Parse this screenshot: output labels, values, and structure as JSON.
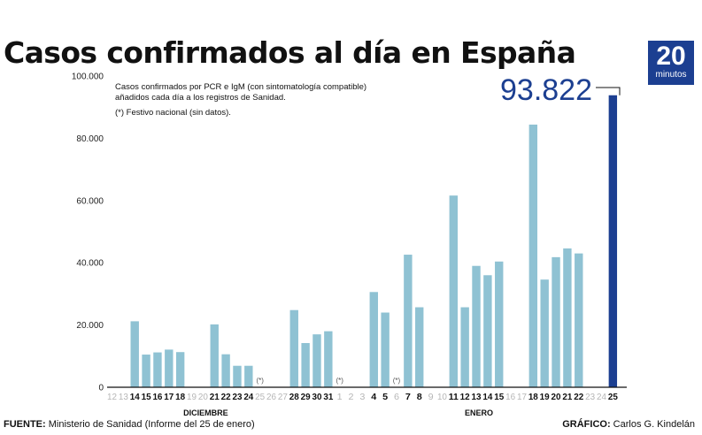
{
  "header": {
    "title": "Casos confirmados al día en España",
    "logo_number": "20",
    "logo_word": "minutos"
  },
  "footer": {
    "source_label": "FUENTE:",
    "source_text": "Ministerio de Sanidad (Informe del 25 de enero)",
    "credit_label": "GRÁFICO:",
    "credit_text": "Carlos G. Kindelán"
  },
  "colors": {
    "bar": "#8fc2d3",
    "highlight": "#1c3f91",
    "no_data_tick": "#b6b6b6",
    "axis": "#111111"
  },
  "chart_data": {
    "type": "bar",
    "title": "Casos confirmados al día en España",
    "notes": [
      "Casos confirmados por PCR e IgM (con sintomatología compatible)",
      "añadidos cada día a los registros de Sanidad.",
      "(*) Festivo nacional (sin datos)."
    ],
    "holiday_mark": "(*)",
    "ylim": [
      0,
      100000
    ],
    "yticks": [
      0,
      20000,
      40000,
      60000,
      80000,
      100000
    ],
    "ytick_labels": [
      "0",
      "20.000",
      "40.000",
      "60.000",
      "80.000",
      "100.000"
    ],
    "months": [
      {
        "label": "DICIEMBRE",
        "anchor_index": 8
      },
      {
        "label": "ENERO",
        "anchor_index": 32
      }
    ],
    "highlight": {
      "category": "25",
      "label": "93.822",
      "value": 93822
    },
    "categories": [
      "12",
      "13",
      "14",
      "15",
      "16",
      "17",
      "18",
      "19",
      "20",
      "21",
      "22",
      "23",
      "24",
      "25",
      "26",
      "27",
      "28",
      "29",
      "30",
      "31",
      "1",
      "2",
      "3",
      "4",
      "5",
      "6",
      "7",
      "8",
      "9",
      "10",
      "11",
      "12",
      "13",
      "14",
      "15",
      "16",
      "17",
      "18",
      "19",
      "20",
      "21",
      "22",
      "23",
      "24",
      "25"
    ],
    "values": [
      null,
      null,
      21200,
      10500,
      11200,
      12100,
      11300,
      null,
      null,
      20200,
      10600,
      6900,
      6900,
      null,
      null,
      null,
      24800,
      14200,
      17000,
      18000,
      null,
      null,
      null,
      30600,
      24000,
      null,
      42600,
      25700,
      null,
      null,
      61600,
      25700,
      39000,
      36000,
      40400,
      null,
      null,
      84400,
      34600,
      41800,
      44600,
      43000,
      null,
      null,
      93822
    ],
    "holidays": [
      "25 (diciembre)",
      "1 (enero)",
      "6 (enero)"
    ]
  }
}
